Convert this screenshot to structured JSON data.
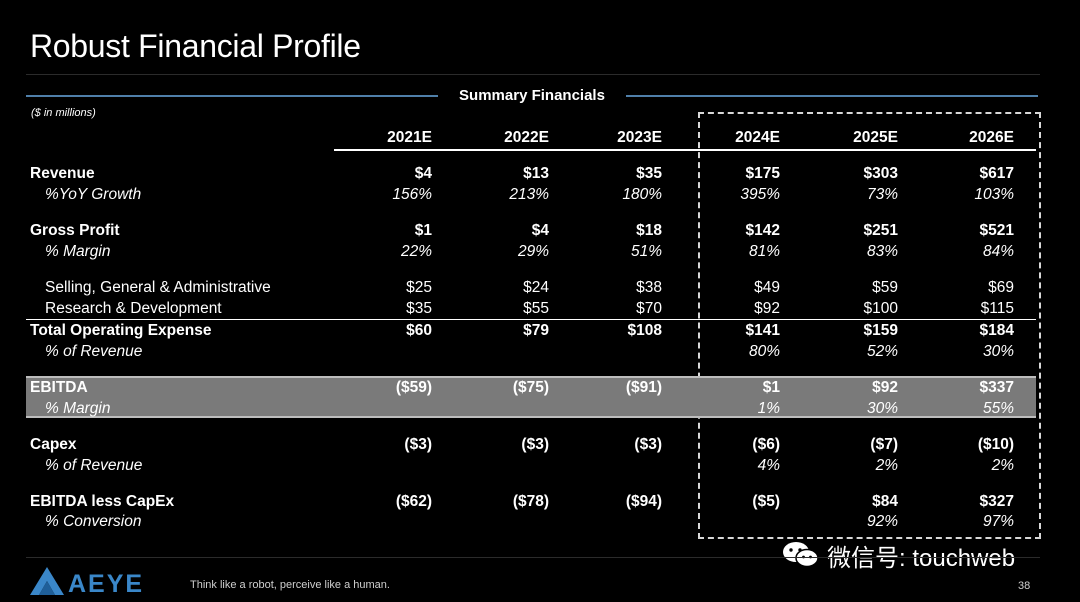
{
  "title": "Robust Financial Profile",
  "section_title": "Summary Financials",
  "units_note": "($ in millions)",
  "years": [
    "2021E",
    "2022E",
    "2023E",
    "2024E",
    "2025E",
    "2026E"
  ],
  "rows": [
    {
      "label": "Revenue",
      "values": [
        "$4",
        "$13",
        "$35",
        "$175",
        "$303",
        "$617"
      ]
    },
    {
      "label": "%YoY Growth",
      "values": [
        "156%",
        "213%",
        "180%",
        "395%",
        "73%",
        "103%"
      ]
    },
    {
      "label": "Gross Profit",
      "values": [
        "$1",
        "$4",
        "$18",
        "$142",
        "$251",
        "$521"
      ]
    },
    {
      "label": "% Margin",
      "values": [
        "22%",
        "29%",
        "51%",
        "81%",
        "83%",
        "84%"
      ]
    },
    {
      "label": "Selling, General & Administrative",
      "values": [
        "$25",
        "$24",
        "$38",
        "$49",
        "$59",
        "$69"
      ]
    },
    {
      "label": "Research & Development",
      "values": [
        "$35",
        "$55",
        "$70",
        "$92",
        "$100",
        "$115"
      ]
    },
    {
      "label": "Total Operating Expense",
      "values": [
        "$60",
        "$79",
        "$108",
        "$141",
        "$159",
        "$184"
      ]
    },
    {
      "label": "% of Revenue",
      "values": [
        "",
        "",
        "",
        "80%",
        "52%",
        "30%"
      ]
    },
    {
      "label": "EBITDA",
      "values": [
        "($59)",
        "($75)",
        "($91)",
        "$1",
        "$92",
        "$337"
      ]
    },
    {
      "label": "% Margin",
      "values": [
        "",
        "",
        "",
        "1%",
        "30%",
        "55%"
      ]
    },
    {
      "label": "Capex",
      "values": [
        "($3)",
        "($3)",
        "($3)",
        "($6)",
        "($7)",
        "($10)"
      ]
    },
    {
      "label": "% of Revenue",
      "values": [
        "",
        "",
        "",
        "4%",
        "2%",
        "2%"
      ]
    },
    {
      "label": "EBITDA less CapEx",
      "values": [
        "($62)",
        "($78)",
        "($94)",
        "($5)",
        "$84",
        "$327"
      ]
    },
    {
      "label": "% Conversion",
      "values": [
        "",
        "",
        "",
        "",
        "92%",
        "97%"
      ]
    }
  ],
  "footer": {
    "logo_text": "AEYE",
    "tagline": "Think like a robot, perceive like a human.",
    "page_number": "38"
  },
  "watermark": {
    "text": "微信号: touchweb",
    "icon": "wechat-icon"
  }
}
